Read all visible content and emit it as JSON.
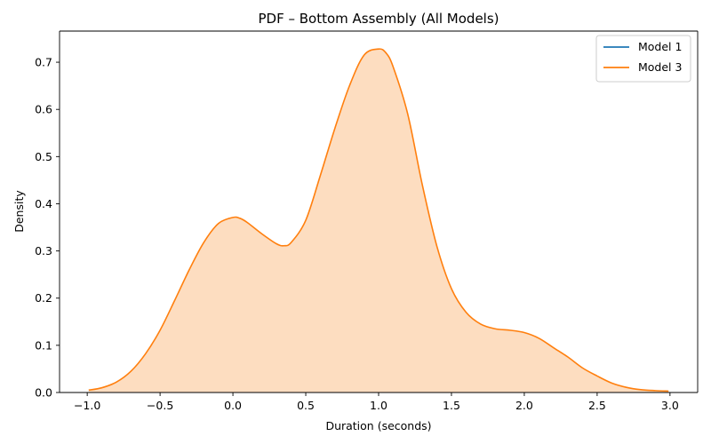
{
  "chart_data": {
    "type": "area",
    "title": "PDF – Bottom Assembly (All Models)",
    "xlabel": "Duration (seconds)",
    "ylabel": "Density",
    "xlim": [
      -1.19,
      3.19
    ],
    "ylim": [
      0,
      0.766
    ],
    "xticks": [
      -1.0,
      -0.5,
      0.0,
      0.5,
      1.0,
      1.5,
      2.0,
      2.5,
      3.0
    ],
    "xtick_labels": [
      "−1.0",
      "−0.5",
      "0.0",
      "0.5",
      "1.0",
      "1.5",
      "2.0",
      "2.5",
      "3.0"
    ],
    "yticks": [
      0.0,
      0.1,
      0.2,
      0.3,
      0.4,
      0.5,
      0.6,
      0.7
    ],
    "ytick_labels": [
      "0.0",
      "0.1",
      "0.2",
      "0.3",
      "0.4",
      "0.5",
      "0.6",
      "0.7"
    ],
    "grid": false,
    "legend_position": "top-right",
    "series": [
      {
        "name": "Model 1",
        "color": "#1f77b4",
        "x": [],
        "y": []
      },
      {
        "name": "Model 3",
        "color": "#ff7f0e",
        "fill": "#fdddc0",
        "x": [
          -0.99,
          -0.9,
          -0.8,
          -0.7,
          -0.6,
          -0.5,
          -0.4,
          -0.3,
          -0.2,
          -0.1,
          0.0,
          0.05,
          0.1,
          0.2,
          0.3,
          0.35,
          0.4,
          0.5,
          0.6,
          0.7,
          0.8,
          0.9,
          1.0,
          1.05,
          1.1,
          1.2,
          1.3,
          1.4,
          1.5,
          1.6,
          1.7,
          1.8,
          1.9,
          2.0,
          2.1,
          2.2,
          2.3,
          2.4,
          2.5,
          2.6,
          2.7,
          2.8,
          2.9,
          2.99
        ],
        "y": [
          0.005,
          0.01,
          0.022,
          0.045,
          0.082,
          0.132,
          0.195,
          0.26,
          0.318,
          0.358,
          0.371,
          0.369,
          0.36,
          0.336,
          0.315,
          0.311,
          0.318,
          0.365,
          0.46,
          0.56,
          0.65,
          0.715,
          0.728,
          0.72,
          0.69,
          0.59,
          0.44,
          0.31,
          0.22,
          0.17,
          0.145,
          0.135,
          0.132,
          0.127,
          0.115,
          0.095,
          0.075,
          0.052,
          0.035,
          0.02,
          0.011,
          0.006,
          0.004,
          0.003
        ]
      }
    ]
  }
}
